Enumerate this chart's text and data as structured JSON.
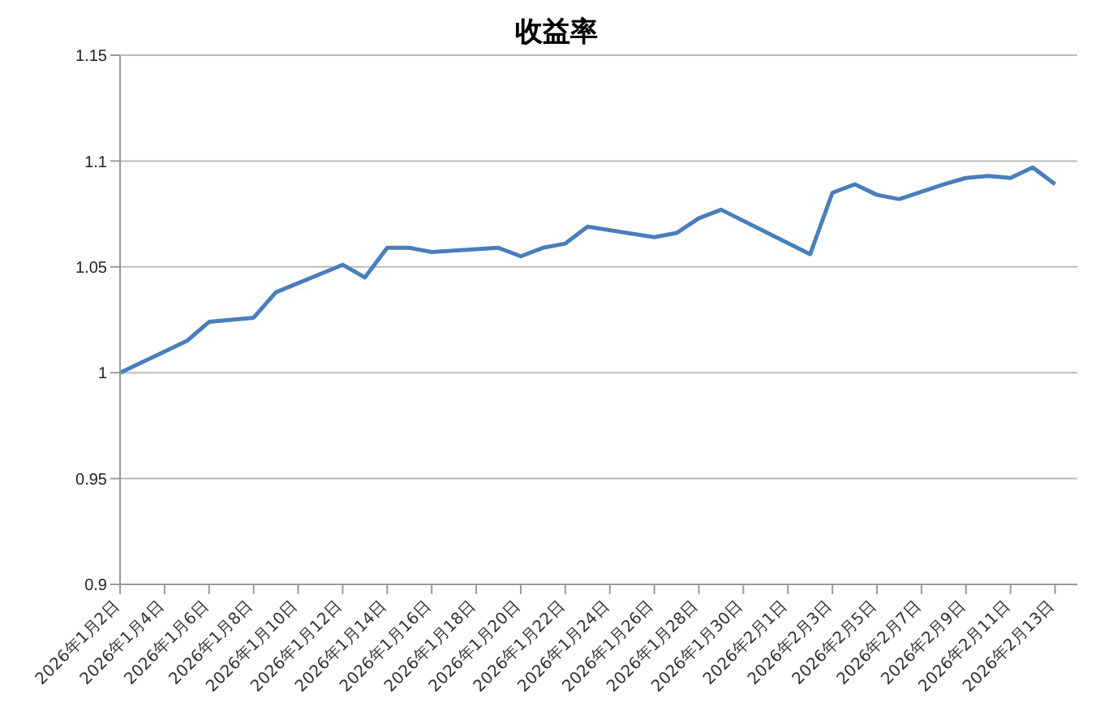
{
  "chart_data": {
    "type": "line",
    "title": "收益率",
    "x": [
      "2026-01-02",
      "2026-01-05",
      "2026-01-06",
      "2026-01-08",
      "2026-01-09",
      "2026-01-12",
      "2026-01-13",
      "2026-01-14",
      "2026-01-15",
      "2026-01-16",
      "2026-01-19",
      "2026-01-20",
      "2026-01-21",
      "2026-01-22",
      "2026-01-23",
      "2026-01-26",
      "2026-01-27",
      "2026-01-28",
      "2026-01-29",
      "2026-02-02",
      "2026-02-03",
      "2026-02-04",
      "2026-02-05",
      "2026-02-06",
      "2026-02-08",
      "2026-02-09",
      "2026-02-10",
      "2026-02-11",
      "2026-02-12",
      "2026-02-13"
    ],
    "series": [
      {
        "color": "#4a7ebb",
        "values": [
          1.0,
          1.015,
          1.024,
          1.026,
          1.038,
          1.051,
          1.045,
          1.059,
          1.059,
          1.057,
          1.059,
          1.055,
          1.059,
          1.061,
          1.069,
          1.064,
          1.066,
          1.073,
          1.077,
          1.056,
          1.085,
          1.089,
          1.084,
          1.082,
          1.089,
          1.092,
          1.093,
          1.092,
          1.097,
          1.089
        ]
      }
    ],
    "xlim": [
      "2026-01-02",
      "2026-02-14"
    ],
    "xticks": [
      {
        "value": "2026-01-02",
        "label": "2026年1月2日"
      },
      {
        "value": "2026-01-04",
        "label": "2026年1月4日"
      },
      {
        "value": "2026-01-06",
        "label": "2026年1月6日"
      },
      {
        "value": "2026-01-08",
        "label": "2026年1月8日"
      },
      {
        "value": "2026-01-10",
        "label": "2026年1月10日"
      },
      {
        "value": "2026-01-12",
        "label": "2026年1月12日"
      },
      {
        "value": "2026-01-14",
        "label": "2026年1月14日"
      },
      {
        "value": "2026-01-16",
        "label": "2026年1月16日"
      },
      {
        "value": "2026-01-18",
        "label": "2026年1月18日"
      },
      {
        "value": "2026-01-20",
        "label": "2026年1月20日"
      },
      {
        "value": "2026-01-22",
        "label": "2026年1月22日"
      },
      {
        "value": "2026-01-24",
        "label": "2026年1月24日"
      },
      {
        "value": "2026-01-26",
        "label": "2026年1月26日"
      },
      {
        "value": "2026-01-28",
        "label": "2026年1月28日"
      },
      {
        "value": "2026-01-30",
        "label": "2026年1月30日"
      },
      {
        "value": "2026-02-01",
        "label": "2026年2月1日"
      },
      {
        "value": "2026-02-03",
        "label": "2026年2月3日"
      },
      {
        "value": "2026-02-05",
        "label": "2026年2月5日"
      },
      {
        "value": "2026-02-07",
        "label": "2026年2月7日"
      },
      {
        "value": "2026-02-09",
        "label": "2026年2月9日"
      },
      {
        "value": "2026-02-11",
        "label": "2026年2月11日"
      },
      {
        "value": "2026-02-13",
        "label": "2026年2月13日"
      }
    ],
    "ylim": [
      0.9,
      1.15
    ],
    "yticks": [
      0.9,
      0.95,
      1,
      1.05,
      1.1,
      1.15
    ],
    "grid": "y",
    "legend": false,
    "marker": "none",
    "line_style": "solid"
  }
}
